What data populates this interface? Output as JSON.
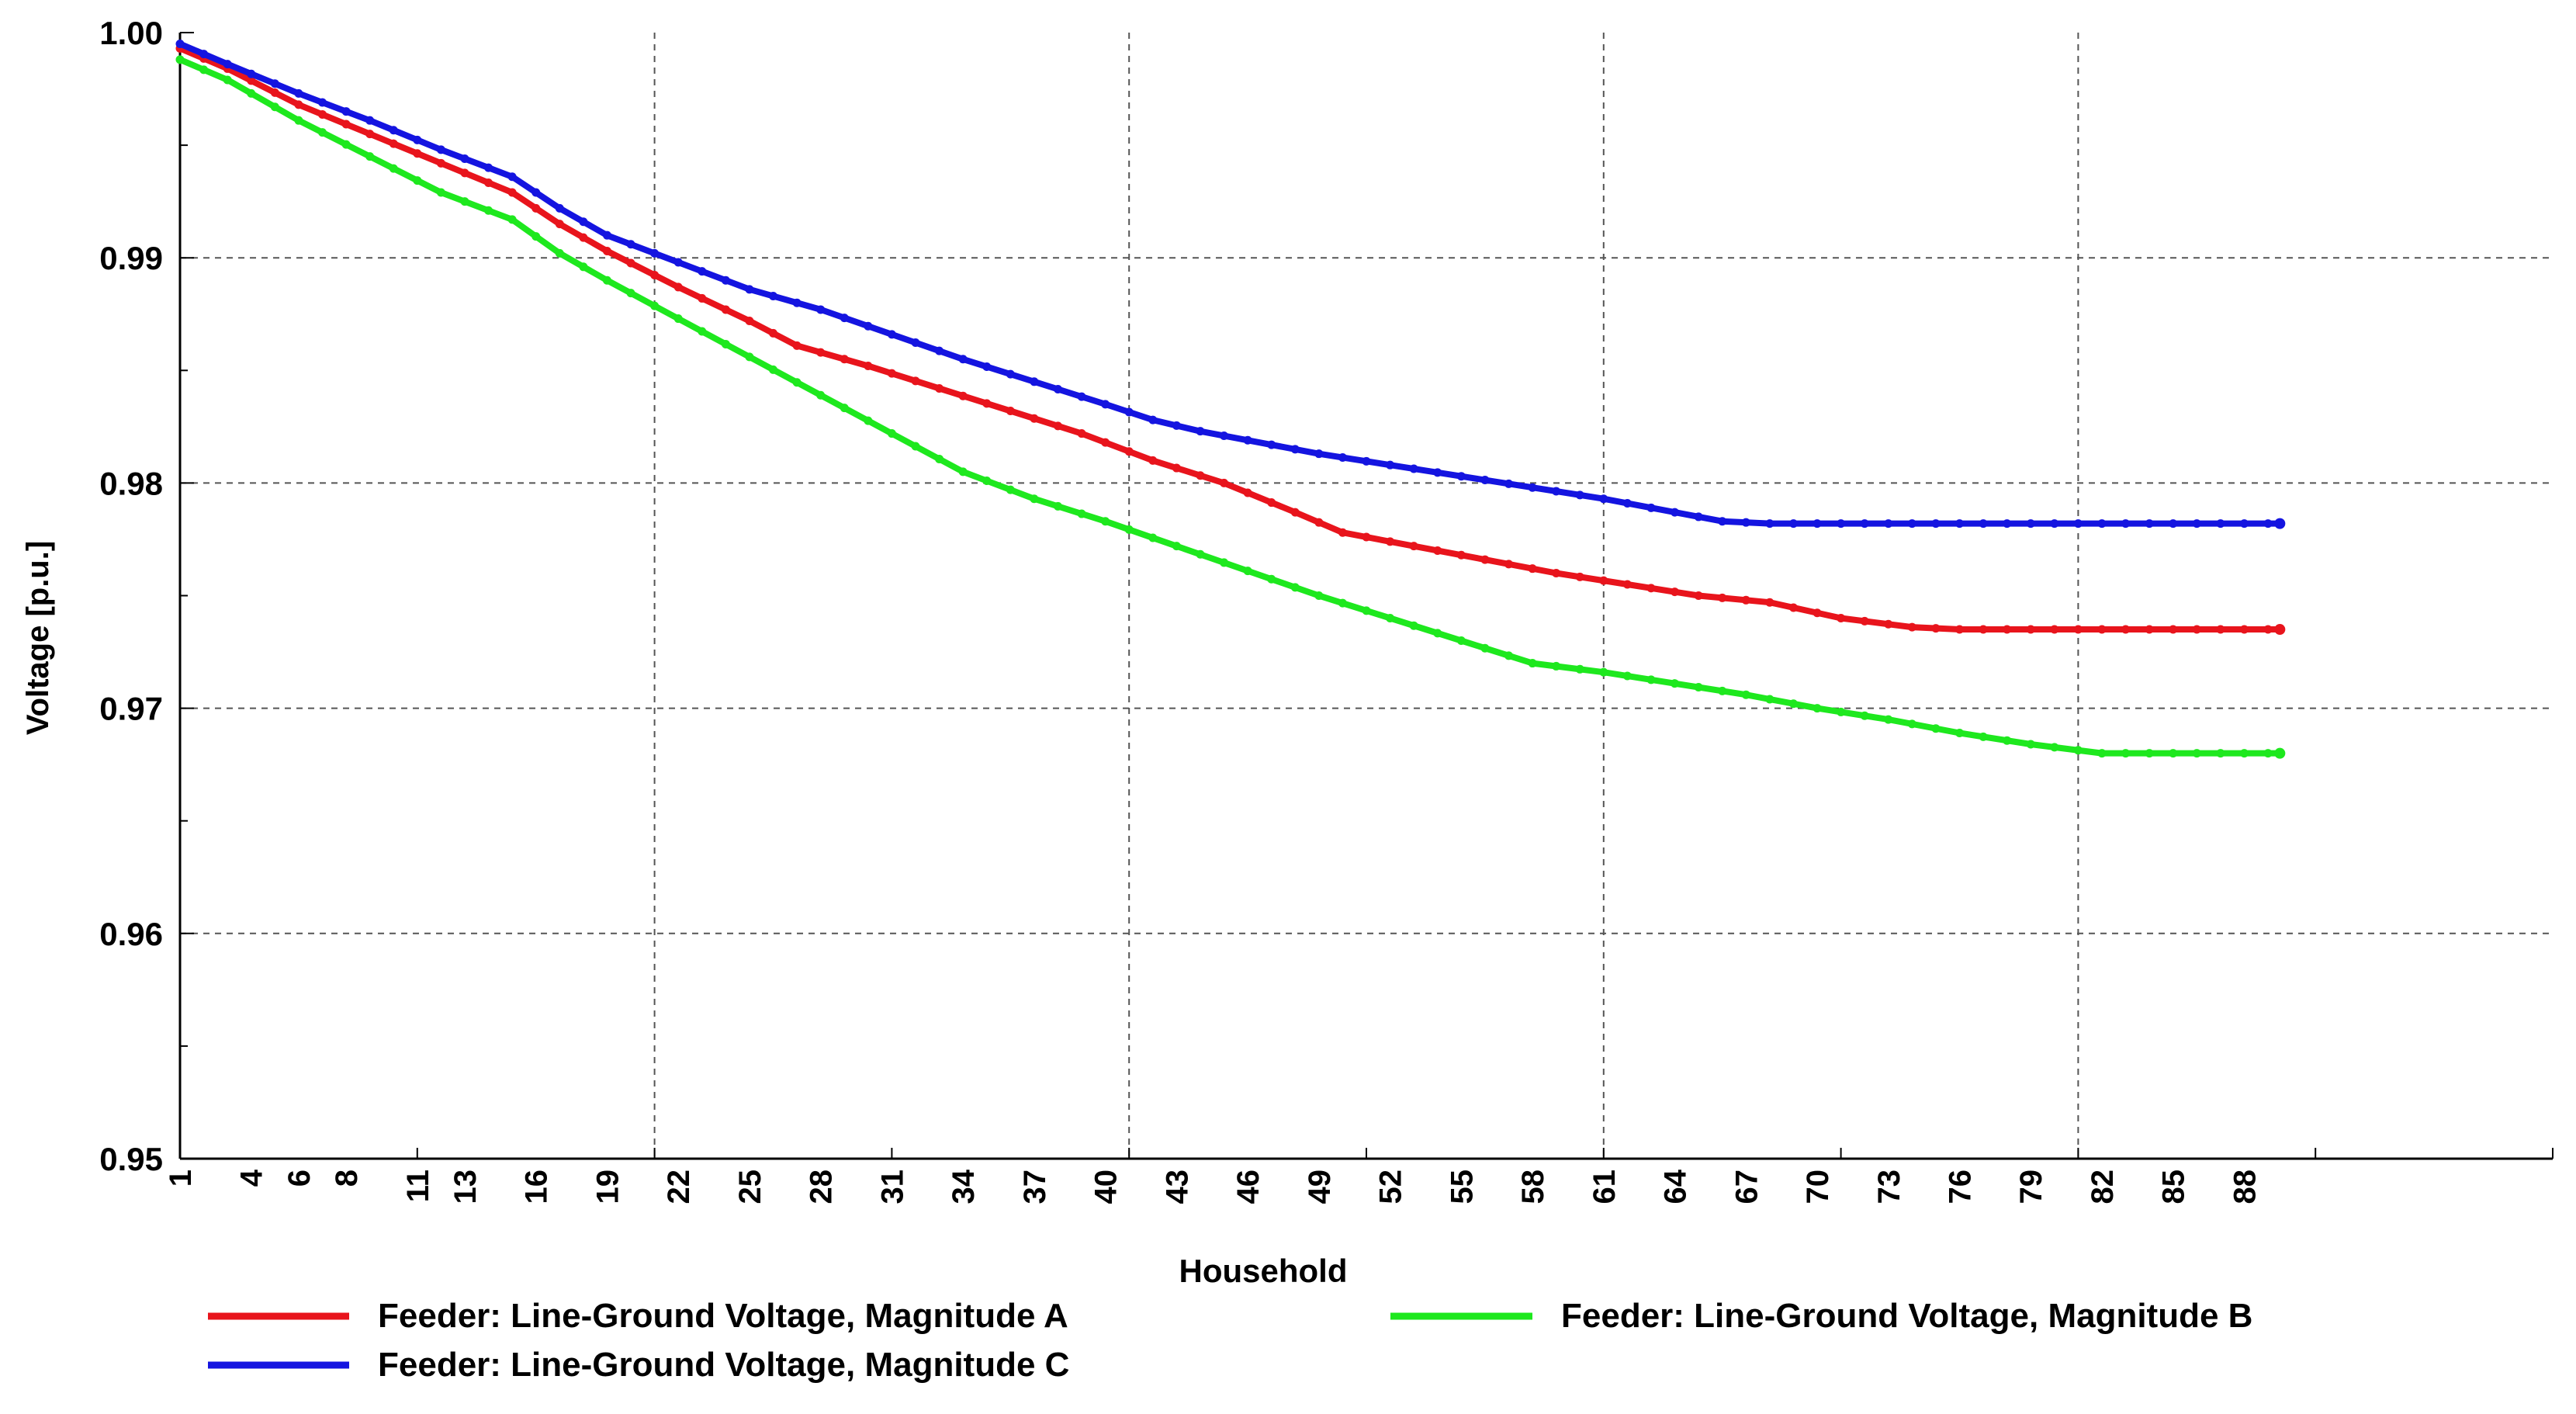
{
  "chart_data": {
    "type": "line",
    "title": "",
    "xlabel": "Household",
    "ylabel": "Voltage [p.u.]",
    "ylim": [
      0.95,
      1.0
    ],
    "xlim": [
      1,
      101
    ],
    "grid": true,
    "grid_style": "dashed",
    "legend_position": "bottom",
    "x_tick_labels": [
      1,
      4,
      6,
      8,
      11,
      13,
      16,
      19,
      22,
      25,
      28,
      31,
      34,
      37,
      40,
      43,
      46,
      49,
      52,
      55,
      58,
      61,
      64,
      67,
      70,
      73,
      76,
      79,
      82,
      85,
      88
    ],
    "y_tick_labels": [
      "0.95",
      "0.96",
      "0.97",
      "0.98",
      "0.99",
      "1.00"
    ],
    "series": [
      {
        "name": "Feeder: Line-Ground Voltage, Magnitude A",
        "color": "#e8141c",
        "points": [
          [
            1,
            0.9993
          ],
          [
            3,
            0.9984
          ],
          [
            6,
            0.9968
          ],
          [
            9,
            0.9955
          ],
          [
            12,
            0.9942
          ],
          [
            15,
            0.9929
          ],
          [
            17,
            0.9915
          ],
          [
            19,
            0.9903
          ],
          [
            22,
            0.9887
          ],
          [
            25,
            0.9872
          ],
          [
            27,
            0.9861
          ],
          [
            30,
            0.9852
          ],
          [
            33,
            0.9842
          ],
          [
            36,
            0.9832
          ],
          [
            39,
            0.9822
          ],
          [
            42,
            0.981
          ],
          [
            45,
            0.98
          ],
          [
            48,
            0.9787
          ],
          [
            50,
            0.9778
          ],
          [
            53,
            0.9772
          ],
          [
            56,
            0.9766
          ],
          [
            59,
            0.976
          ],
          [
            62,
            0.9755
          ],
          [
            65,
            0.975
          ],
          [
            68,
            0.9747
          ],
          [
            71,
            0.974
          ],
          [
            74,
            0.9736
          ],
          [
            76,
            0.9735
          ],
          [
            80,
            0.9735
          ],
          [
            85,
            0.9735
          ],
          [
            89.5,
            0.9735
          ]
        ]
      },
      {
        "name": "Feeder: Line-Ground Voltage, Magnitude B",
        "color": "#1ee81e",
        "points": [
          [
            1,
            0.9988
          ],
          [
            3,
            0.9979
          ],
          [
            6,
            0.9961
          ],
          [
            9,
            0.9945
          ],
          [
            12,
            0.9929
          ],
          [
            15,
            0.9917
          ],
          [
            17,
            0.9902
          ],
          [
            19,
            0.989
          ],
          [
            22,
            0.9873
          ],
          [
            25,
            0.9856
          ],
          [
            28,
            0.9839
          ],
          [
            31,
            0.9822
          ],
          [
            34,
            0.9805
          ],
          [
            37,
            0.9793
          ],
          [
            40,
            0.9783
          ],
          [
            43,
            0.9772
          ],
          [
            46,
            0.9761
          ],
          [
            49,
            0.975
          ],
          [
            52,
            0.974
          ],
          [
            55,
            0.973
          ],
          [
            58,
            0.972
          ],
          [
            61,
            0.9716
          ],
          [
            64,
            0.9711
          ],
          [
            67,
            0.9706
          ],
          [
            70,
            0.97
          ],
          [
            73,
            0.9695
          ],
          [
            76,
            0.9689
          ],
          [
            79,
            0.9684
          ],
          [
            82,
            0.968
          ],
          [
            85,
            0.968
          ],
          [
            89.5,
            0.968
          ]
        ]
      },
      {
        "name": "Feeder: Line-Ground Voltage, Magnitude C",
        "color": "#1414e0",
        "points": [
          [
            1,
            0.9995
          ],
          [
            3,
            0.9986
          ],
          [
            6,
            0.9973
          ],
          [
            9,
            0.9961
          ],
          [
            12,
            0.9948
          ],
          [
            15,
            0.9936
          ],
          [
            17,
            0.9922
          ],
          [
            19,
            0.991
          ],
          [
            22,
            0.9898
          ],
          [
            25,
            0.9886
          ],
          [
            28,
            0.9877
          ],
          [
            31,
            0.9866
          ],
          [
            34,
            0.9855
          ],
          [
            37,
            0.9845
          ],
          [
            40,
            0.9835
          ],
          [
            42,
            0.9828
          ],
          [
            44,
            0.9823
          ],
          [
            46,
            0.9819
          ],
          [
            49,
            0.9813
          ],
          [
            52,
            0.9808
          ],
          [
            55,
            0.9803
          ],
          [
            58,
            0.9798
          ],
          [
            61,
            0.9793
          ],
          [
            64,
            0.9787
          ],
          [
            66,
            0.9783
          ],
          [
            68,
            0.9782
          ],
          [
            72,
            0.9782
          ],
          [
            78,
            0.9782
          ],
          [
            84,
            0.9782
          ],
          [
            89.5,
            0.9782
          ]
        ]
      }
    ]
  }
}
